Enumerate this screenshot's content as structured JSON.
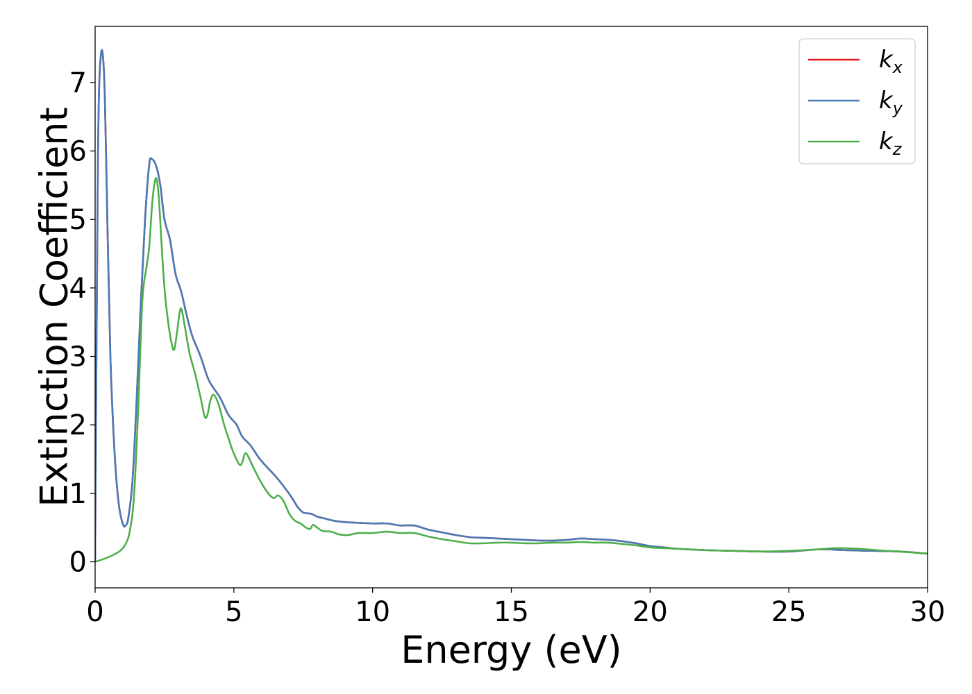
{
  "chart_data": {
    "type": "line",
    "title": "",
    "xlabel": "Energy (eV)",
    "ylabel": "Extinction Coefficient",
    "xlim": [
      0,
      30
    ],
    "ylim": [
      -0.38,
      7.82
    ],
    "xticks": [
      0,
      5,
      10,
      15,
      20,
      25,
      30
    ],
    "yticks": [
      0,
      1,
      2,
      3,
      4,
      5,
      6,
      7
    ],
    "grid": false,
    "legend_position": "top-right",
    "series": [
      {
        "name": "k_x",
        "legend": {
          "base": "k",
          "sub": "x"
        },
        "color": "#e41a1c",
        "points": [
          [
            0,
            0
          ],
          [
            0.05,
            3.2
          ],
          [
            0.1,
            5.8
          ],
          [
            0.15,
            7.0
          ],
          [
            0.25,
            7.47
          ],
          [
            0.35,
            6.8
          ],
          [
            0.45,
            4.8
          ],
          [
            0.55,
            3.0
          ],
          [
            0.7,
            1.6
          ],
          [
            0.85,
            0.85
          ],
          [
            1.0,
            0.55
          ],
          [
            1.1,
            0.53
          ],
          [
            1.2,
            0.65
          ],
          [
            1.35,
            1.2
          ],
          [
            1.5,
            2.4
          ],
          [
            1.65,
            3.8
          ],
          [
            1.8,
            5.0
          ],
          [
            1.95,
            5.8
          ],
          [
            2.05,
            5.88
          ],
          [
            2.2,
            5.78
          ],
          [
            2.35,
            5.5
          ],
          [
            2.5,
            5.0
          ],
          [
            2.7,
            4.7
          ],
          [
            2.9,
            4.2
          ],
          [
            3.1,
            3.95
          ],
          [
            3.3,
            3.6
          ],
          [
            3.5,
            3.3
          ],
          [
            3.8,
            3.0
          ],
          [
            4.1,
            2.65
          ],
          [
            4.5,
            2.4
          ],
          [
            4.8,
            2.15
          ],
          [
            5.1,
            2.0
          ],
          [
            5.3,
            1.83
          ],
          [
            5.6,
            1.7
          ],
          [
            5.9,
            1.52
          ],
          [
            6.2,
            1.38
          ],
          [
            6.5,
            1.25
          ],
          [
            6.8,
            1.1
          ],
          [
            7.1,
            0.93
          ],
          [
            7.3,
            0.8
          ],
          [
            7.5,
            0.72
          ],
          [
            7.8,
            0.7
          ],
          [
            8.0,
            0.66
          ],
          [
            8.3,
            0.63
          ],
          [
            8.6,
            0.6
          ],
          [
            9.0,
            0.58
          ],
          [
            9.5,
            0.57
          ],
          [
            10.0,
            0.56
          ],
          [
            10.5,
            0.56
          ],
          [
            11.0,
            0.53
          ],
          [
            11.5,
            0.53
          ],
          [
            12.0,
            0.47
          ],
          [
            12.5,
            0.43
          ],
          [
            13.0,
            0.39
          ],
          [
            13.5,
            0.36
          ],
          [
            14.0,
            0.35
          ],
          [
            14.5,
            0.34
          ],
          [
            15.0,
            0.33
          ],
          [
            15.5,
            0.32
          ],
          [
            16.0,
            0.31
          ],
          [
            16.5,
            0.31
          ],
          [
            17.0,
            0.32
          ],
          [
            17.5,
            0.34
          ],
          [
            18.0,
            0.33
          ],
          [
            18.5,
            0.32
          ],
          [
            19.0,
            0.3
          ],
          [
            19.5,
            0.27
          ],
          [
            20.0,
            0.23
          ],
          [
            20.5,
            0.21
          ],
          [
            21.0,
            0.19
          ],
          [
            22.0,
            0.17
          ],
          [
            23.0,
            0.16
          ],
          [
            24.0,
            0.15
          ],
          [
            25.0,
            0.15
          ],
          [
            26.0,
            0.18
          ],
          [
            26.5,
            0.18
          ],
          [
            27.0,
            0.17
          ],
          [
            28.0,
            0.16
          ],
          [
            29.0,
            0.15
          ],
          [
            30.0,
            0.12
          ]
        ]
      },
      {
        "name": "k_y",
        "legend": {
          "base": "k",
          "sub": "y"
        },
        "color": "#4a7bb7",
        "points": [
          [
            0,
            0
          ],
          [
            0.05,
            3.2
          ],
          [
            0.1,
            5.8
          ],
          [
            0.15,
            7.0
          ],
          [
            0.25,
            7.47
          ],
          [
            0.35,
            6.8
          ],
          [
            0.45,
            4.8
          ],
          [
            0.55,
            3.0
          ],
          [
            0.7,
            1.6
          ],
          [
            0.85,
            0.85
          ],
          [
            1.0,
            0.55
          ],
          [
            1.1,
            0.53
          ],
          [
            1.2,
            0.65
          ],
          [
            1.35,
            1.2
          ],
          [
            1.5,
            2.4
          ],
          [
            1.65,
            3.8
          ],
          [
            1.8,
            5.0
          ],
          [
            1.95,
            5.8
          ],
          [
            2.05,
            5.88
          ],
          [
            2.2,
            5.78
          ],
          [
            2.35,
            5.5
          ],
          [
            2.5,
            5.0
          ],
          [
            2.7,
            4.7
          ],
          [
            2.9,
            4.2
          ],
          [
            3.1,
            3.95
          ],
          [
            3.3,
            3.6
          ],
          [
            3.5,
            3.3
          ],
          [
            3.8,
            3.0
          ],
          [
            4.1,
            2.65
          ],
          [
            4.5,
            2.4
          ],
          [
            4.8,
            2.15
          ],
          [
            5.1,
            2.0
          ],
          [
            5.3,
            1.83
          ],
          [
            5.6,
            1.7
          ],
          [
            5.9,
            1.52
          ],
          [
            6.2,
            1.38
          ],
          [
            6.5,
            1.25
          ],
          [
            6.8,
            1.1
          ],
          [
            7.1,
            0.93
          ],
          [
            7.3,
            0.8
          ],
          [
            7.5,
            0.72
          ],
          [
            7.8,
            0.7
          ],
          [
            8.0,
            0.66
          ],
          [
            8.3,
            0.63
          ],
          [
            8.6,
            0.6
          ],
          [
            9.0,
            0.58
          ],
          [
            9.5,
            0.57
          ],
          [
            10.0,
            0.56
          ],
          [
            10.5,
            0.56
          ],
          [
            11.0,
            0.53
          ],
          [
            11.5,
            0.53
          ],
          [
            12.0,
            0.47
          ],
          [
            12.5,
            0.43
          ],
          [
            13.0,
            0.39
          ],
          [
            13.5,
            0.36
          ],
          [
            14.0,
            0.35
          ],
          [
            14.5,
            0.34
          ],
          [
            15.0,
            0.33
          ],
          [
            15.5,
            0.32
          ],
          [
            16.0,
            0.31
          ],
          [
            16.5,
            0.31
          ],
          [
            17.0,
            0.32
          ],
          [
            17.5,
            0.34
          ],
          [
            18.0,
            0.33
          ],
          [
            18.5,
            0.32
          ],
          [
            19.0,
            0.3
          ],
          [
            19.5,
            0.27
          ],
          [
            20.0,
            0.23
          ],
          [
            20.5,
            0.21
          ],
          [
            21.0,
            0.19
          ],
          [
            22.0,
            0.17
          ],
          [
            23.0,
            0.16
          ],
          [
            24.0,
            0.15
          ],
          [
            25.0,
            0.15
          ],
          [
            26.0,
            0.18
          ],
          [
            26.5,
            0.18
          ],
          [
            27.0,
            0.17
          ],
          [
            28.0,
            0.16
          ],
          [
            29.0,
            0.15
          ],
          [
            30.0,
            0.12
          ]
        ]
      },
      {
        "name": "k_z",
        "legend": {
          "base": "k",
          "sub": "z"
        },
        "color": "#4daf4a",
        "points": [
          [
            0,
            0.0
          ],
          [
            0.3,
            0.04
          ],
          [
            0.6,
            0.09
          ],
          [
            0.9,
            0.16
          ],
          [
            1.1,
            0.26
          ],
          [
            1.25,
            0.45
          ],
          [
            1.4,
            0.95
          ],
          [
            1.55,
            2.2
          ],
          [
            1.7,
            3.8
          ],
          [
            1.85,
            4.3
          ],
          [
            1.95,
            4.6
          ],
          [
            2.05,
            5.2
          ],
          [
            2.15,
            5.55
          ],
          [
            2.22,
            5.58
          ],
          [
            2.3,
            5.3
          ],
          [
            2.4,
            4.6
          ],
          [
            2.5,
            4.0
          ],
          [
            2.6,
            3.6
          ],
          [
            2.75,
            3.2
          ],
          [
            2.85,
            3.1
          ],
          [
            2.95,
            3.35
          ],
          [
            3.05,
            3.65
          ],
          [
            3.12,
            3.68
          ],
          [
            3.25,
            3.4
          ],
          [
            3.4,
            3.05
          ],
          [
            3.6,
            2.75
          ],
          [
            3.8,
            2.4
          ],
          [
            3.95,
            2.12
          ],
          [
            4.05,
            2.15
          ],
          [
            4.15,
            2.35
          ],
          [
            4.27,
            2.44
          ],
          [
            4.45,
            2.3
          ],
          [
            4.65,
            2.0
          ],
          [
            4.85,
            1.75
          ],
          [
            5.0,
            1.58
          ],
          [
            5.2,
            1.42
          ],
          [
            5.3,
            1.45
          ],
          [
            5.4,
            1.58
          ],
          [
            5.5,
            1.55
          ],
          [
            5.7,
            1.38
          ],
          [
            5.9,
            1.22
          ],
          [
            6.1,
            1.08
          ],
          [
            6.3,
            0.97
          ],
          [
            6.45,
            0.93
          ],
          [
            6.6,
            0.97
          ],
          [
            6.8,
            0.88
          ],
          [
            7.0,
            0.7
          ],
          [
            7.2,
            0.6
          ],
          [
            7.4,
            0.56
          ],
          [
            7.6,
            0.5
          ],
          [
            7.75,
            0.48
          ],
          [
            7.85,
            0.54
          ],
          [
            8.0,
            0.5
          ],
          [
            8.2,
            0.45
          ],
          [
            8.5,
            0.44
          ],
          [
            8.8,
            0.4
          ],
          [
            9.1,
            0.39
          ],
          [
            9.5,
            0.42
          ],
          [
            10.0,
            0.42
          ],
          [
            10.5,
            0.44
          ],
          [
            11.0,
            0.42
          ],
          [
            11.5,
            0.42
          ],
          [
            12.0,
            0.37
          ],
          [
            12.5,
            0.33
          ],
          [
            13.0,
            0.3
          ],
          [
            13.5,
            0.27
          ],
          [
            14.0,
            0.27
          ],
          [
            14.5,
            0.28
          ],
          [
            15.0,
            0.28
          ],
          [
            15.5,
            0.27
          ],
          [
            16.0,
            0.27
          ],
          [
            16.5,
            0.28
          ],
          [
            17.0,
            0.28
          ],
          [
            17.5,
            0.29
          ],
          [
            18.0,
            0.28
          ],
          [
            18.5,
            0.28
          ],
          [
            19.0,
            0.26
          ],
          [
            19.5,
            0.24
          ],
          [
            20.0,
            0.21
          ],
          [
            20.5,
            0.2
          ],
          [
            21.0,
            0.19
          ],
          [
            22.0,
            0.17
          ],
          [
            23.0,
            0.16
          ],
          [
            24.0,
            0.15
          ],
          [
            25.0,
            0.16
          ],
          [
            26.0,
            0.18
          ],
          [
            26.7,
            0.2
          ],
          [
            27.5,
            0.19
          ],
          [
            28.5,
            0.16
          ],
          [
            29.3,
            0.14
          ],
          [
            30.0,
            0.12
          ]
        ]
      }
    ]
  }
}
